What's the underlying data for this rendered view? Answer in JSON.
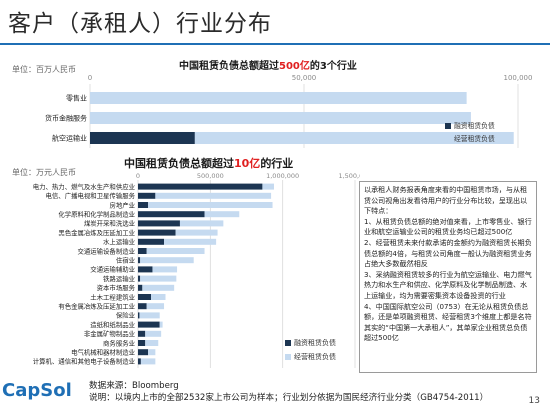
{
  "page": {
    "title": "客户（承租人）行业分布",
    "page_number": "13",
    "logo_text": "CapSol",
    "source_line": "数据来源：Bloomberg",
    "note_line": "说明：以境内上市的全部2532家上市公司为样本；行业划分依据为国民经济行业分类（GB4754-2011）",
    "accent_color": "#1f6fb5",
    "highlight_color": "#e02020"
  },
  "top": {
    "unit_label": "单位：百万人民币",
    "title_prefix": "中国租赁负债总额超过",
    "title_highlight": "500亿",
    "title_suffix": "的3个行业"
  },
  "bottom": {
    "unit_label": "单位：万元人民币",
    "title_prefix": "中国租赁负债总额超过",
    "title_highlight": "10亿",
    "title_suffix": "的行业"
  },
  "notes": [
    "以承租人财务报表角度来看的中国租赁市场，与从租赁公司视角出发看待用户的行业分布比较，呈现出以下特点：",
    "1、从租赁负债总额的绝对值来看，上市零售业、银行业和航空运输业公司的租赁业务均已超过500亿",
    "2、经营租赁未来付款承诺的金额约为融资租赁长期负债总额的4倍，与租赁公司角度一般认为融资租赁业务占绝大多数截然相反",
    "3、采纳融资租赁较多的行业为航空运输业、电力燃气热力和水生产和供应、化学原料及化学制品制造、水上运输业，均为需要密集资本设备投资的行业",
    "4、中国国际航空公司（0753）在无论从租赁负债总额，还是单项融资租赁、经营租赁3个维度上都是名符其实的“中国第一大承租人”，其单家企业租赁总负债超过500亿"
  ],
  "chart_data": [
    {
      "type": "bar",
      "orientation": "horizontal",
      "stacked": true,
      "title": "中国租赁负债总额超过500亿的3个行业",
      "unit": "单位：百万人民币",
      "categories": [
        "零售业",
        "货币金融服务",
        "航空运输业"
      ],
      "series": [
        {
          "name": "融资租赁负债",
          "color": "#1c3552",
          "values": [
            0,
            0,
            24500
          ]
        },
        {
          "name": "经营租赁负债",
          "color": "#c5daf0",
          "values": [
            88000,
            89000,
            74500
          ]
        }
      ],
      "xlim": [
        0,
        100000
      ],
      "xticks": [
        0,
        50000,
        100000
      ],
      "xtick_labels": [
        "0",
        "50,000",
        "100,000"
      ],
      "legend_position": "bottom-right",
      "grid": true
    },
    {
      "type": "bar",
      "orientation": "horizontal",
      "stacked": true,
      "title": "中国租赁负债总额超过10亿的行业",
      "unit": "单位：万元人民币",
      "categories": [
        "电力、热力、燃气及水生产和供应业",
        "电信、广播电视和卫星传输服务",
        "房地产业",
        "化学原料和化学制品制造业",
        "煤炭开采和洗选业",
        "黑色金属冶炼及压延加工业",
        "水上运输业",
        "交通运输设备制造业",
        "住宿业",
        "交通运输辅助业",
        "铁路运输业",
        "资本市场服务",
        "土木工程建筑业",
        "有色金属冶炼及压延加工业",
        "保险业",
        "造纸和纸制品业",
        "非金属矿物制品业",
        "商务服务业",
        "电气机械和器材制造业",
        "计算机、通信和其他电子设备制造业"
      ],
      "series": [
        {
          "name": "融资租赁负债",
          "color": "#1c3552",
          "values": [
            860000,
            120000,
            70000,
            460000,
            290000,
            260000,
            180000,
            60000,
            15000,
            100000,
            15000,
            30000,
            90000,
            60000,
            10000,
            150000,
            50000,
            50000,
            70000,
            20000
          ]
        },
        {
          "name": "经营租赁负债",
          "color": "#c5daf0",
          "values": [
            80000,
            800000,
            860000,
            240000,
            300000,
            290000,
            360000,
            400000,
            370000,
            170000,
            250000,
            220000,
            100000,
            120000,
            140000,
            20000,
            110000,
            90000,
            50000,
            100000
          ]
        }
      ],
      "xlim": [
        0,
        1500000
      ],
      "xticks": [
        0,
        500000,
        1000000,
        1500000
      ],
      "xtick_labels": [
        "0",
        "500,000",
        "1,000,000",
        "1,500,000"
      ],
      "legend_position": "bottom-right",
      "grid": true
    }
  ]
}
